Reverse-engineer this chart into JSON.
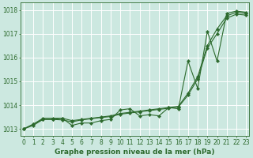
{
  "title": "Graphe pression niveau de la mer (hPa)",
  "bg_color": "#cce8e0",
  "grid_color": "#ffffff",
  "line_color": "#2d6a2d",
  "x_ticks": [
    0,
    1,
    2,
    3,
    4,
    5,
    6,
    7,
    8,
    9,
    10,
    11,
    12,
    13,
    14,
    15,
    16,
    17,
    18,
    19,
    20,
    21,
    22,
    23
  ],
  "y_ticks": [
    1013,
    1014,
    1015,
    1016,
    1017,
    1018
  ],
  "ylim": [
    1012.7,
    1018.3
  ],
  "xlim": [
    -0.3,
    23.3
  ],
  "series": {
    "line1": [
      1013.0,
      1013.2,
      1013.4,
      1013.4,
      1013.45,
      1013.15,
      1013.25,
      1013.25,
      1013.35,
      1013.4,
      1013.8,
      1013.85,
      1013.55,
      1013.6,
      1013.55,
      1013.9,
      1013.85,
      1015.85,
      1014.7,
      1017.1,
      1015.85,
      1017.85,
      1017.95,
      1017.9
    ],
    "line2": [
      1013.0,
      1013.2,
      1013.45,
      1013.45,
      1013.45,
      1013.35,
      1013.4,
      1013.45,
      1013.5,
      1013.55,
      1013.65,
      1013.7,
      1013.75,
      1013.8,
      1013.85,
      1013.9,
      1013.95,
      1014.5,
      1015.2,
      1016.5,
      1017.2,
      1017.75,
      1017.9,
      1017.85
    ],
    "line3": [
      1013.0,
      1013.15,
      1013.4,
      1013.4,
      1013.38,
      1013.3,
      1013.38,
      1013.43,
      1013.48,
      1013.52,
      1013.62,
      1013.67,
      1013.72,
      1013.77,
      1013.82,
      1013.87,
      1013.92,
      1014.42,
      1015.1,
      1016.4,
      1017.0,
      1017.65,
      1017.82,
      1017.78
    ]
  },
  "tick_fontsize": 5.5,
  "title_fontsize": 6.5
}
